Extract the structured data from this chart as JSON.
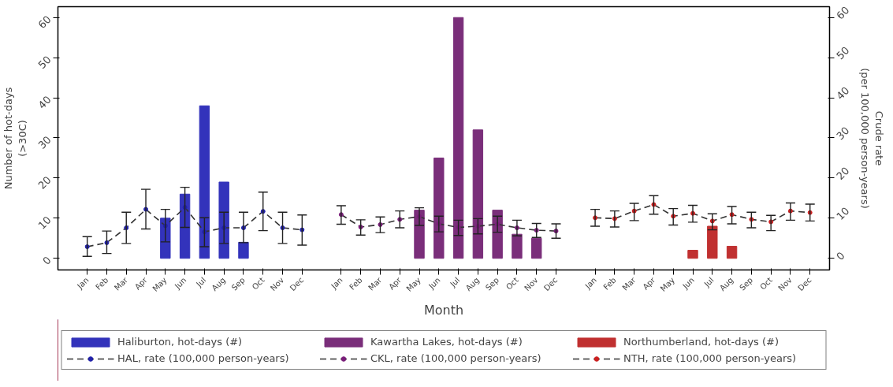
{
  "chart_data": {
    "type": "bar",
    "xlabel": "Month",
    "ylabel": "Number of hot-days\n(>30C)",
    "y2label": "Crude rate\n(per 100,000 person-years)",
    "categories": [
      "Jan",
      "Feb",
      "Mar",
      "Apr",
      "May",
      "Jun",
      "Jul",
      "Aug",
      "Sep",
      "Oct",
      "Nov",
      "Dec",
      "Jan",
      "Feb",
      "Mar",
      "Apr",
      "May",
      "Jun",
      "Jul",
      "Aug",
      "Sep",
      "Oct",
      "Nov",
      "Dec",
      "Jan",
      "Feb",
      "Mar",
      "Apr",
      "May",
      "Jun",
      "Jul",
      "Aug",
      "Sep",
      "Oct",
      "Nov",
      "Dec"
    ],
    "ylim": [
      -2.9,
      62.7
    ],
    "yticks": [
      0,
      10,
      20,
      30,
      40,
      50,
      60
    ],
    "y2lim": [
      -2.9,
      62.7
    ],
    "y2ticks": [
      0,
      10,
      20,
      30,
      40,
      50,
      60
    ],
    "grid": false,
    "legend": "bottom",
    "line_style": "dashed",
    "marker": "circle",
    "series": [
      {
        "name": "Haliburton, hot-days (#)",
        "color": "#3333bb",
        "values": [
          null,
          null,
          null,
          null,
          10,
          16,
          38,
          19,
          4,
          null,
          null,
          null,
          null,
          null,
          null,
          null,
          null,
          null,
          null,
          null,
          null,
          null,
          null,
          null,
          null,
          null,
          null,
          null,
          null,
          null,
          null,
          null,
          null,
          null,
          null,
          null
        ]
      },
      {
        "name": "Kawartha Lakes, hot-days (#)",
        "color": "#7a2e7a",
        "values": [
          null,
          null,
          null,
          null,
          null,
          null,
          null,
          null,
          null,
          null,
          null,
          null,
          null,
          null,
          null,
          null,
          12,
          25,
          60,
          32,
          12,
          6,
          5,
          null,
          null,
          null,
          null,
          null,
          null,
          null,
          null,
          null,
          null,
          null,
          null,
          null
        ]
      },
      {
        "name": "Northumberland, hot-days (#)",
        "color": "#c03030",
        "values": [
          null,
          null,
          null,
          null,
          null,
          null,
          null,
          null,
          null,
          null,
          null,
          null,
          null,
          null,
          null,
          null,
          null,
          null,
          null,
          null,
          null,
          null,
          null,
          null,
          null,
          null,
          null,
          null,
          null,
          2,
          8,
          3,
          null,
          null,
          null,
          null
        ]
      },
      {
        "name": "HAL, rate (100,000 person-years)",
        "type": "line",
        "axis": "y2",
        "color": "#2222aa",
        "values": [
          2.9,
          3.9,
          7.6,
          12.2,
          8.1,
          12.7,
          6.6,
          7.6,
          7.6,
          11.7,
          7.6,
          7.1,
          null,
          null,
          null,
          null,
          null,
          null,
          null,
          null,
          null,
          null,
          null,
          null,
          null,
          null,
          null,
          null,
          null,
          null,
          null,
          null,
          null,
          null,
          null,
          null
        ],
        "errors": [
          [
            0.5,
            5.4
          ],
          [
            1.2,
            6.8
          ],
          [
            3.7,
            11.5
          ],
          [
            7.3,
            17.2
          ],
          [
            4.1,
            12.2
          ],
          [
            7.7,
            17.7
          ],
          [
            2.9,
            10.1
          ],
          [
            3.7,
            11.5
          ],
          [
            3.9,
            11.5
          ],
          [
            6.9,
            16.5
          ],
          [
            3.7,
            11.5
          ],
          [
            3.3,
            10.8
          ],
          null,
          null,
          null,
          null,
          null,
          null,
          null,
          null,
          null,
          null,
          null,
          null,
          null,
          null,
          null,
          null,
          null,
          null,
          null,
          null,
          null,
          null,
          null,
          null
        ]
      },
      {
        "name": "CKL, rate (100,000 person-years)",
        "type": "line",
        "axis": "y2",
        "color": "#7a1e7a",
        "values": [
          null,
          null,
          null,
          null,
          null,
          null,
          null,
          null,
          null,
          null,
          null,
          null,
          10.9,
          7.8,
          8.4,
          9.7,
          10.4,
          8.6,
          7.7,
          8.0,
          8.5,
          7.6,
          7.0,
          6.8,
          null,
          null,
          null,
          null,
          null,
          null,
          null,
          null,
          null,
          null,
          null,
          null
        ],
        "errors": [
          null,
          null,
          null,
          null,
          null,
          null,
          null,
          null,
          null,
          null,
          null,
          null,
          [
            8.5,
            13.1
          ],
          [
            5.8,
            9.6
          ],
          [
            6.4,
            10.3
          ],
          [
            7.6,
            11.8
          ],
          [
            8.2,
            12.6
          ],
          [
            6.6,
            10.5
          ],
          [
            5.7,
            9.5
          ],
          [
            6.1,
            9.9
          ],
          [
            6.5,
            10.5
          ],
          [
            5.6,
            9.5
          ],
          [
            5.2,
            8.7
          ],
          [
            5.0,
            8.6
          ],
          null,
          null,
          null,
          null,
          null,
          null,
          null,
          null,
          null,
          null,
          null,
          null
        ]
      },
      {
        "name": "NTH, rate (100,000 person-years)",
        "type": "line",
        "axis": "y2",
        "color": "#cc2020",
        "values": [
          null,
          null,
          null,
          null,
          null,
          null,
          null,
          null,
          null,
          null,
          null,
          null,
          null,
          null,
          null,
          null,
          null,
          null,
          null,
          null,
          null,
          null,
          null,
          null,
          10.1,
          9.9,
          11.8,
          13.4,
          10.5,
          11.2,
          9.3,
          10.9,
          9.7,
          9.1,
          11.8,
          11.4
        ],
        "errors": [
          null,
          null,
          null,
          null,
          null,
          null,
          null,
          null,
          null,
          null,
          null,
          null,
          null,
          null,
          null,
          null,
          null,
          null,
          null,
          null,
          null,
          null,
          null,
          null,
          [
            8.0,
            12.2
          ],
          [
            7.8,
            11.8
          ],
          [
            9.4,
            13.7
          ],
          [
            11.0,
            15.6
          ],
          [
            8.3,
            12.4
          ],
          [
            9.0,
            13.2
          ],
          [
            7.1,
            11.1
          ],
          [
            8.6,
            12.9
          ],
          [
            7.6,
            11.5
          ],
          [
            6.9,
            10.7
          ],
          [
            9.5,
            13.8
          ],
          [
            9.3,
            13.5
          ]
        ]
      }
    ]
  }
}
